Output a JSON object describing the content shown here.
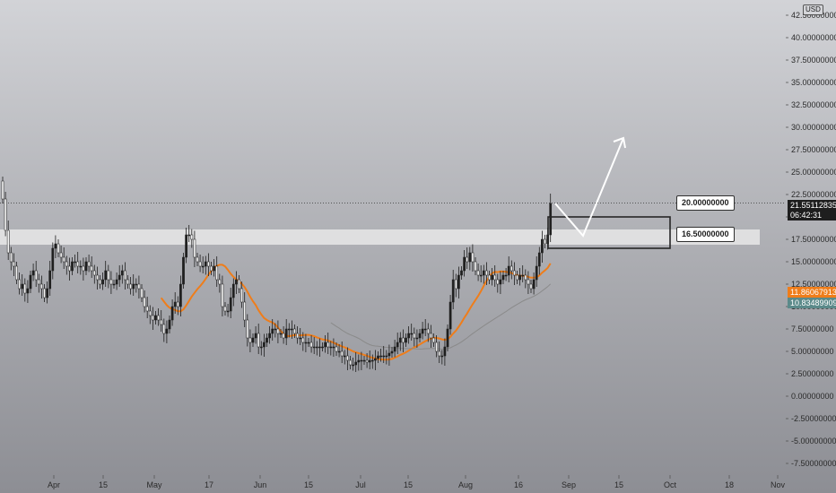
{
  "currency": "USD",
  "colors": {
    "up_candle": "#1f1f1f",
    "down_candle": "#f5f5f5",
    "ma_fast": "#ef7d1a",
    "ma_slow": "#8a8a8a",
    "zone": "#e8e8e8",
    "arrow": "#ffffff",
    "last_price_tag": "#1e1e1e",
    "ma_fast_tag": "#ef7d1a",
    "ma_slow_tag": "#5b8a8a"
  },
  "price_tags": {
    "last_price": "21.55112835",
    "countdown": "06:42:31",
    "ma_fast": "11.86067913",
    "ma_slow": "10.83489909"
  },
  "box_labels": {
    "upper": "20.00000000",
    "lower": "16.50000000"
  },
  "chart_data": {
    "type": "candlestick",
    "title": "",
    "xlabel": "",
    "ylabel": "",
    "ylim": [
      -8.5,
      43.5
    ],
    "grid": false,
    "price_scale_side": "right",
    "y_ticks": [
      "42.50000000",
      "40.00000000",
      "37.50000000",
      "35.00000000",
      "32.50000000",
      "30.00000000",
      "27.50000000",
      "25.00000000",
      "22.50000000",
      "20.00000000",
      "17.50000000",
      "15.00000000",
      "12.50000000",
      "10.00000000",
      "7.50000000",
      "5.00000000",
      "2.50000000",
      "0.00000000",
      "-2.50000000",
      "-5.00000000",
      "-7.50000000"
    ],
    "x_ticks": [
      "Apr",
      "15",
      "May",
      "17",
      "Jun",
      "15",
      "Jul",
      "15",
      "Aug",
      "16",
      "Sep",
      "15",
      "Oct",
      "18",
      "Nov"
    ],
    "last_price": 21.55112835,
    "resistance_zone": [
      17.0,
      18.5
    ],
    "target_box": {
      "top": 20.0,
      "bottom": 16.5
    },
    "projected_path": [
      21.5,
      17.9,
      28.8
    ],
    "ma_fast_value": 11.86067913,
    "ma_slow_value": 10.83489909,
    "closes": [
      22.0,
      18.5,
      16.0,
      15.0,
      14.5,
      13.0,
      12.0,
      12.5,
      11.5,
      12.0,
      13.5,
      14.0,
      13.0,
      12.5,
      12.0,
      11.0,
      12.0,
      14.0,
      16.5,
      17.0,
      16.0,
      15.5,
      15.0,
      14.5,
      14.0,
      15.0,
      15.0,
      14.5,
      14.5,
      14.0,
      15.0,
      14.5,
      14.0,
      13.5,
      13.0,
      12.5,
      13.0,
      14.0,
      13.0,
      12.5,
      12.5,
      13.0,
      13.5,
      14.0,
      13.0,
      12.5,
      12.0,
      12.5,
      12.5,
      12.0,
      11.0,
      10.0,
      9.5,
      9.0,
      8.5,
      9.0,
      8.5,
      8.0,
      7.0,
      7.5,
      8.5,
      10.0,
      10.5,
      10.0,
      12.5,
      15.5,
      18.0,
      18.0,
      17.5,
      15.5,
      15.0,
      14.5,
      14.5,
      15.0,
      14.5,
      14.0,
      14.5,
      13.0,
      12.5,
      10.0,
      9.5,
      9.5,
      11.0,
      12.5,
      13.0,
      12.0,
      10.5,
      8.5,
      6.5,
      6.0,
      6.5,
      7.0,
      5.5,
      5.5,
      6.0,
      6.5,
      7.0,
      7.5,
      7.5,
      7.0,
      7.0,
      6.5,
      7.5,
      7.5,
      7.5,
      7.0,
      6.5,
      6.5,
      6.0,
      6.0,
      6.0,
      5.5,
      5.5,
      5.5,
      5.5,
      5.5,
      6.0,
      5.5,
      5.5,
      5.5,
      5.0,
      5.0,
      4.5,
      4.5,
      4.0,
      3.5,
      3.5,
      3.8,
      4.0,
      4.0,
      4.0,
      3.8,
      4.0,
      4.0,
      4.2,
      4.5,
      4.5,
      4.5,
      4.5,
      4.8,
      5.0,
      5.5,
      6.0,
      6.5,
      6.0,
      6.5,
      7.0,
      7.0,
      6.5,
      6.5,
      7.0,
      7.5,
      7.5,
      7.0,
      6.5,
      6.0,
      5.0,
      4.5,
      4.5,
      5.5,
      7.5,
      10.5,
      13.0,
      12.0,
      13.5,
      14.0,
      15.5,
      15.0,
      16.0,
      15.0,
      14.0,
      13.5,
      13.5,
      14.0,
      13.5,
      13.0,
      13.5,
      13.0,
      12.5,
      13.0,
      13.5,
      13.5,
      14.5,
      14.0,
      13.5,
      13.0,
      13.5,
      13.5,
      13.0,
      12.5,
      12.0,
      13.0,
      14.5,
      16.0,
      17.5,
      17.0,
      18.0,
      21.5
    ]
  }
}
